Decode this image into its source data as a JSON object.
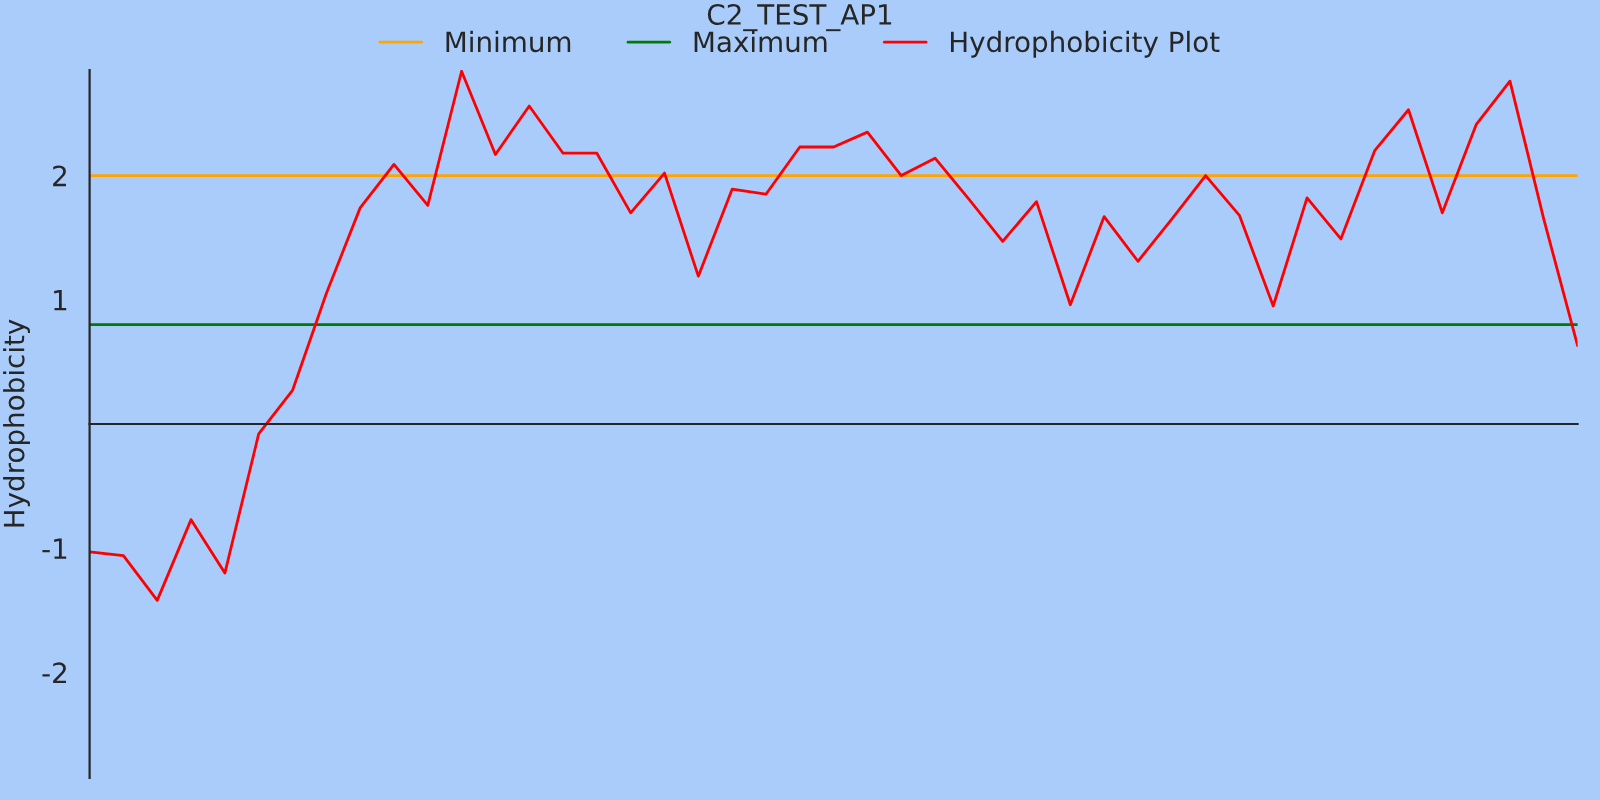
{
  "chart_data": {
    "type": "line",
    "title": "C2_TEST_AP1",
    "ylabel": "Hydrophobicity",
    "categories": [
      null,
      null,
      null,
      null,
      null,
      null,
      null,
      null,
      null,
      null,
      null,
      null,
      null,
      null,
      null,
      null,
      null,
      null,
      null,
      null,
      null,
      null,
      null,
      null,
      null,
      null,
      null,
      null,
      null,
      null,
      null,
      null,
      null,
      null,
      null,
      null,
      null,
      null,
      null,
      null,
      null,
      null,
      null,
      null,
      null
    ],
    "series": [
      {
        "name": "Minimum",
        "color": "#ffa500",
        "values": [
          2,
          2,
          2,
          2,
          2,
          2,
          2,
          2,
          2,
          2,
          2,
          2,
          2,
          2,
          2,
          2,
          2,
          2,
          2,
          2,
          2,
          2,
          2,
          2,
          2,
          2,
          2,
          2,
          2,
          2,
          2,
          2,
          2,
          2,
          2,
          2,
          2,
          2,
          2,
          2,
          2,
          2,
          2,
          2,
          2
        ]
      },
      {
        "name": "Maximum",
        "color": "#007a00",
        "values": [
          0.8,
          0.8,
          0.8,
          0.8,
          0.8,
          0.8,
          0.8,
          0.8,
          0.8,
          0.8,
          0.8,
          0.8,
          0.8,
          0.8,
          0.8,
          0.8,
          0.8,
          0.8,
          0.8,
          0.8,
          0.8,
          0.8,
          0.8,
          0.8,
          0.8,
          0.8,
          0.8,
          0.8,
          0.8,
          0.8,
          0.8,
          0.8,
          0.8,
          0.8,
          0.8,
          0.8,
          0.8,
          0.8,
          0.8,
          0.8,
          0.8,
          0.8,
          0.8,
          0.8,
          0.8
        ]
      },
      {
        "name": "Hydrophobicity Plot",
        "color": "#ff0000",
        "values": [
          -1.03,
          -1.06,
          -1.42,
          -0.77,
          -1.2,
          -0.08,
          0.27,
          1.05,
          1.74,
          2.09,
          1.76,
          2.84,
          2.17,
          2.56,
          2.18,
          2.18,
          1.7,
          2.02,
          1.19,
          1.89,
          1.85,
          2.23,
          2.23,
          2.35,
          2.0,
          2.14,
          1.81,
          1.47,
          1.79,
          0.96,
          1.67,
          1.31,
          1.65,
          2.0,
          1.68,
          0.95,
          1.82,
          1.49,
          2.2,
          2.53,
          1.7,
          2.41,
          2.76,
          1.65,
          0.63
        ]
      }
    ],
    "ylim": [
      -2.85,
      2.85
    ],
    "yticks": [
      -2,
      -1,
      1,
      2
    ],
    "legend": "top",
    "grid": false,
    "marker": "none",
    "line_style": "solid"
  }
}
